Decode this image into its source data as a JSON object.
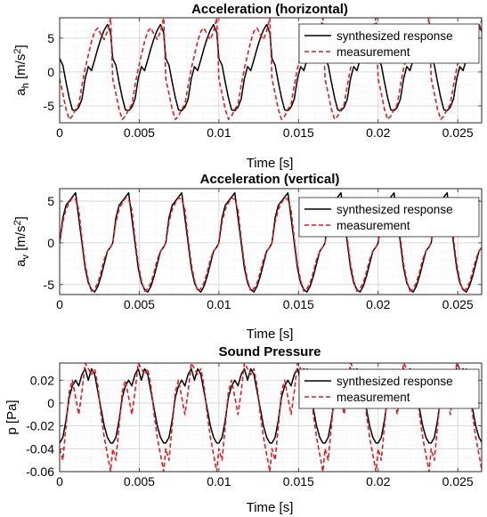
{
  "chart_data": [
    {
      "type": "line",
      "title": "Acceleration (horizontal)",
      "xlabel": "Time [s]",
      "ylabel": "a_h [m/s²]",
      "ylabel_main": "a",
      "ylabel_sub": "h",
      "ylabel_unit": " [m/s",
      "ylabel_sup": "2",
      "ylabel_end": "]",
      "xlim": [
        0,
        0.0265
      ],
      "ylim": [
        -7.5,
        8
      ],
      "xticks": [
        0,
        0.005,
        0.01,
        0.015,
        0.02,
        0.025
      ],
      "xtick_labels": [
        "0",
        "0.005",
        "0.01",
        "0.015",
        "0.02",
        "0.025"
      ],
      "yticks": [
        -5,
        0,
        5
      ],
      "ytick_labels": [
        "-5",
        "0",
        "5"
      ],
      "grid": true,
      "minor_grid": true,
      "legend_position": "top-right",
      "period": 0.003333,
      "series": [
        {
          "name": "synthesized response",
          "color": "#000000",
          "dash": "solid",
          "x": [
            0,
            0.0002,
            0.0004,
            0.0006,
            0.0008,
            0.001,
            0.0012,
            0.0014,
            0.0016,
            0.0018,
            0.002,
            0.0022,
            0.0024,
            0.0026,
            0.0028,
            0.003,
            0.0032,
            0.003333
          ],
          "y": [
            2.0,
            1.0,
            -1.5,
            -3.8,
            -5.6,
            -5.7,
            -5.2,
            -4.0,
            -1.0,
            0.8,
            0.2,
            1.8,
            3.5,
            5.0,
            6.2,
            7.0,
            5.8,
            2.0
          ]
        },
        {
          "name": "measurement",
          "color": "#e41a1c",
          "dash": "dashed",
          "x": [
            0,
            0.0002,
            0.0004,
            0.0006,
            0.0008,
            0.001,
            0.0012,
            0.0014,
            0.0016,
            0.0018,
            0.002,
            0.0022,
            0.0024,
            0.0026,
            0.0028,
            0.003,
            0.0032,
            0.003333
          ],
          "y": [
            -1.0,
            -3.2,
            -5.5,
            -7.0,
            -6.5,
            -5.5,
            -4.8,
            -2.0,
            0.5,
            2.5,
            4.5,
            6.0,
            6.5,
            5.5,
            4.8,
            6.0,
            8.0,
            -1.0
          ]
        }
      ]
    },
    {
      "type": "line",
      "title": "Acceleration (vertical)",
      "xlabel": "Time [s]",
      "ylabel": "a_v [m/s²]",
      "ylabel_main": "a",
      "ylabel_sub": "v",
      "ylabel_unit": " [m/s",
      "ylabel_sup": "2",
      "ylabel_end": "]",
      "xlim": [
        0,
        0.0265
      ],
      "ylim": [
        -6.2,
        6.5
      ],
      "xticks": [
        0,
        0.005,
        0.01,
        0.015,
        0.02,
        0.025
      ],
      "xtick_labels": [
        "0",
        "0.005",
        "0.01",
        "0.015",
        "0.02",
        "0.025"
      ],
      "yticks": [
        -5,
        0,
        5
      ],
      "ytick_labels": [
        "-5",
        "0",
        "5"
      ],
      "grid": true,
      "minor_grid": true,
      "legend_position": "top-right",
      "period": 0.003333,
      "series": [
        {
          "name": "synthesized response",
          "color": "#000000",
          "dash": "solid",
          "x": [
            0,
            0.0002,
            0.0004,
            0.0006,
            0.0008,
            0.001,
            0.0012,
            0.0014,
            0.0016,
            0.0018,
            0.002,
            0.0022,
            0.0024,
            0.0026,
            0.0028,
            0.003,
            0.0032,
            0.003333
          ],
          "y": [
            0,
            3.0,
            4.5,
            5.0,
            5.5,
            6.0,
            3.0,
            0.0,
            -3.0,
            -4.8,
            -5.6,
            -5.9,
            -5.2,
            -4.0,
            -2.5,
            -1.0,
            -0.5,
            0
          ]
        },
        {
          "name": "measurement",
          "color": "#e41a1c",
          "dash": "dashed",
          "x": [
            0,
            0.0002,
            0.0004,
            0.0006,
            0.0008,
            0.001,
            0.0012,
            0.0014,
            0.0016,
            0.0018,
            0.002,
            0.0022,
            0.0024,
            0.0026,
            0.0028,
            0.003,
            0.0032,
            0.003333
          ],
          "y": [
            0,
            2.5,
            4.0,
            4.8,
            5.4,
            5.2,
            4.0,
            0.5,
            -2.5,
            -4.5,
            -5.8,
            -5.5,
            -4.8,
            -3.5,
            -2.0,
            -1.0,
            -0.5,
            0
          ]
        }
      ]
    },
    {
      "type": "line",
      "title": "Sound Pressure",
      "xlabel": "Time [s]",
      "ylabel": "p [Pa]",
      "ylabel_main": "p [Pa]",
      "ylabel_sub": "",
      "ylabel_unit": "",
      "ylabel_sup": "",
      "ylabel_end": "",
      "xlim": [
        0,
        0.0265
      ],
      "ylim": [
        -0.06,
        0.035
      ],
      "xticks": [
        0,
        0.005,
        0.01,
        0.015,
        0.02,
        0.025
      ],
      "xtick_labels": [
        "0",
        "0.005",
        "0.01",
        "0.015",
        "0.02",
        "0.025"
      ],
      "yticks": [
        -0.06,
        -0.04,
        -0.02,
        0,
        0.02
      ],
      "ytick_labels": [
        "-0.06",
        "-0.04",
        "-0.02",
        "0",
        "0.02"
      ],
      "grid": true,
      "minor_grid": true,
      "legend_position": "top-right",
      "period": 0.003333,
      "series": [
        {
          "name": "synthesized response",
          "color": "#000000",
          "dash": "solid",
          "x": [
            0,
            0.0002,
            0.0004,
            0.0006,
            0.0008,
            0.001,
            0.0012,
            0.0014,
            0.0016,
            0.0018,
            0.002,
            0.0022,
            0.0024,
            0.0026,
            0.0028,
            0.003,
            0.0032,
            0.003333
          ],
          "y": [
            -0.035,
            -0.03,
            -0.015,
            0.005,
            0.015,
            0.02,
            0.015,
            0.025,
            0.03,
            0.02,
            0.03,
            0.025,
            0.01,
            -0.005,
            -0.02,
            -0.03,
            -0.035,
            -0.035
          ]
        },
        {
          "name": "measurement",
          "color": "#e41a1c",
          "dash": "dashed",
          "x": [
            0,
            0.0002,
            0.0004,
            0.0006,
            0.0008,
            0.001,
            0.0012,
            0.0014,
            0.0016,
            0.0018,
            0.002,
            0.0022,
            0.0024,
            0.0026,
            0.0028,
            0.003,
            0.0032,
            0.003333
          ],
          "y": [
            -0.04,
            -0.05,
            -0.02,
            0.01,
            0.02,
            0.005,
            -0.01,
            0.01,
            0.035,
            0.03,
            0.025,
            0.03,
            0.015,
            -0.01,
            -0.03,
            -0.045,
            -0.06,
            -0.04
          ]
        }
      ]
    }
  ]
}
